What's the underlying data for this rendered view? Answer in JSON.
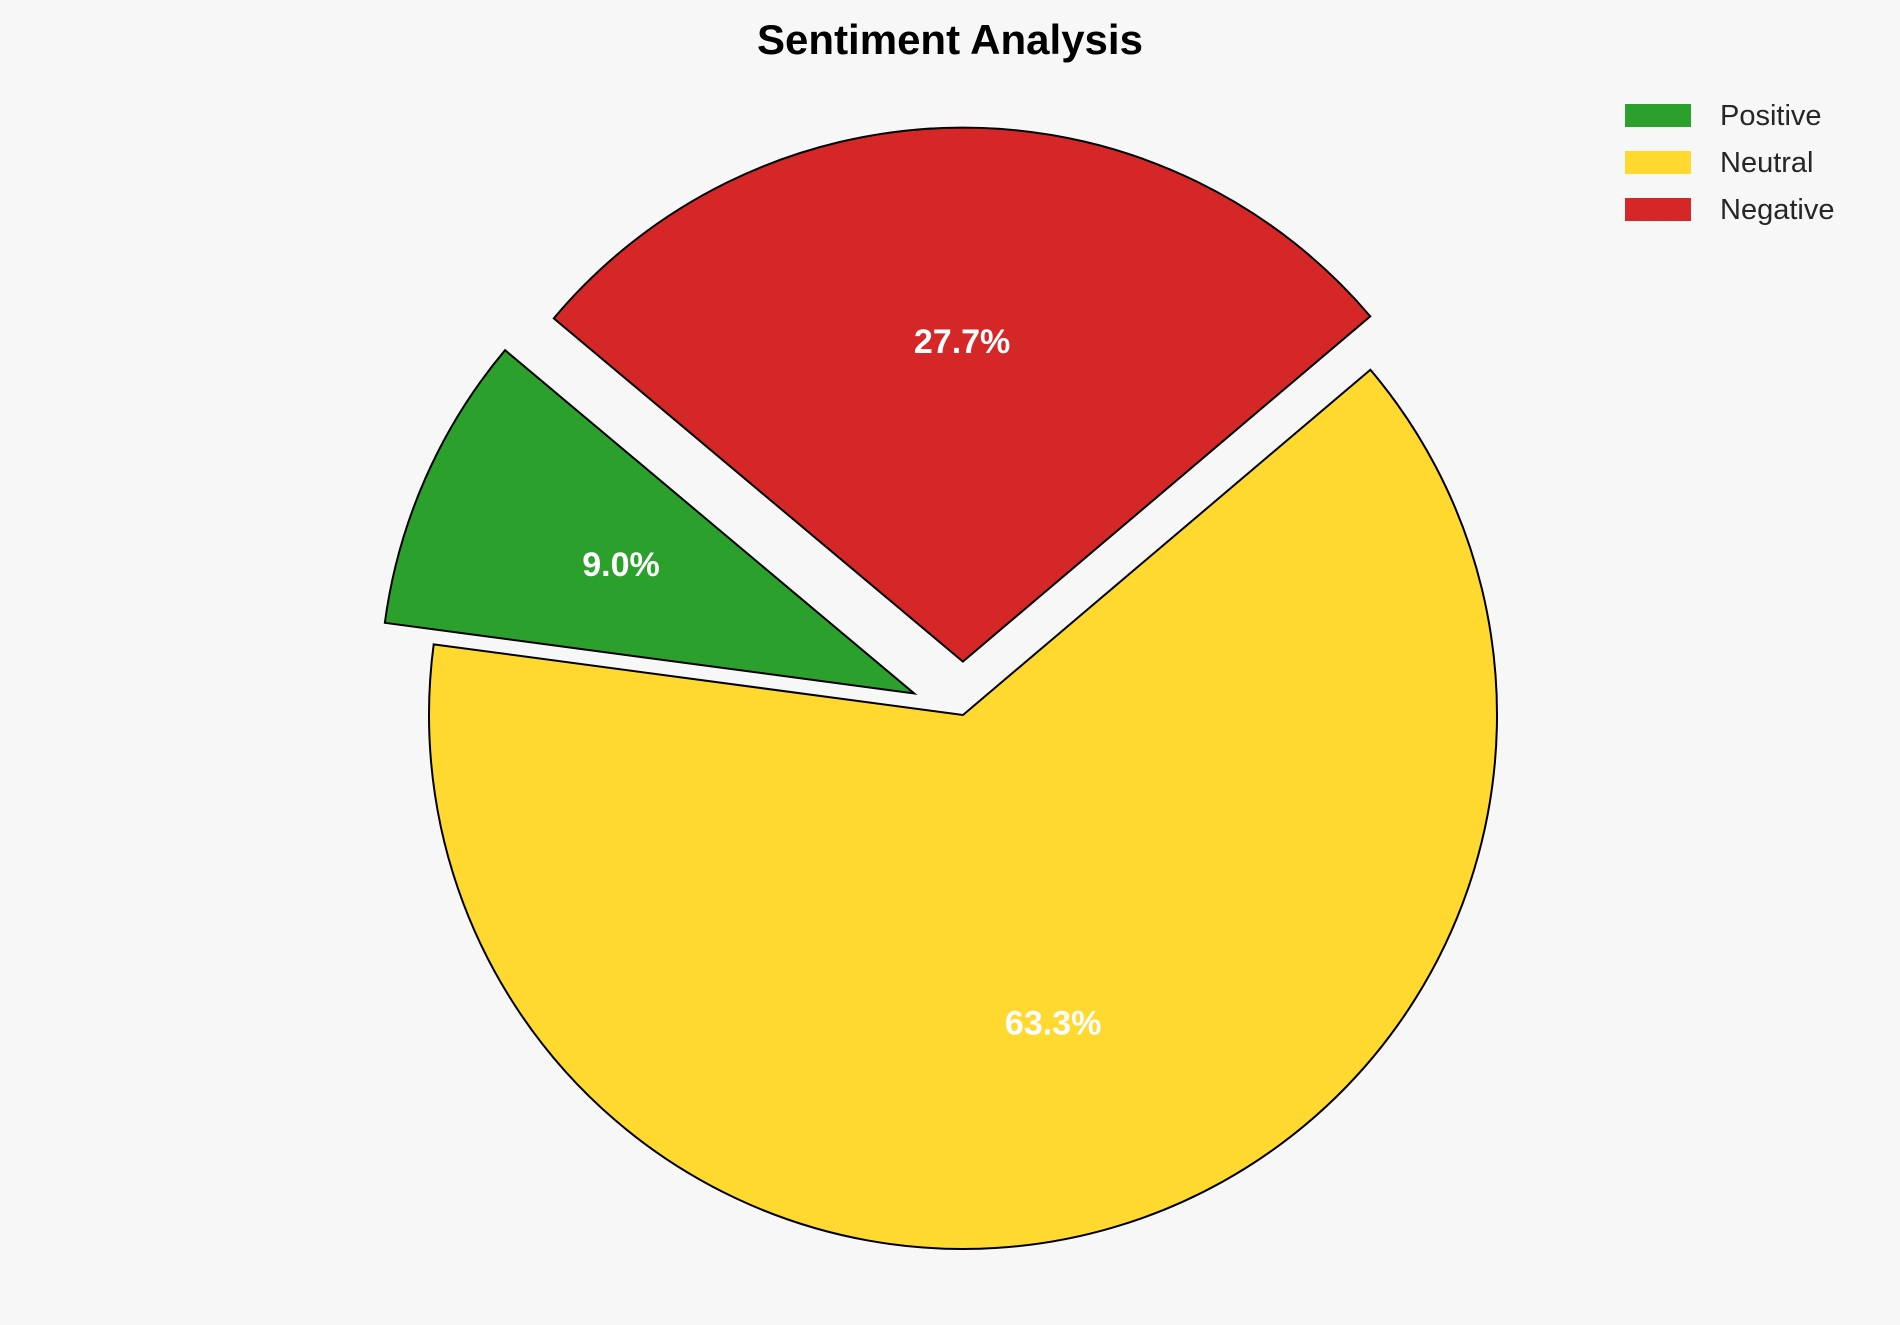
{
  "chart_data": {
    "type": "pie",
    "title": "Sentiment Analysis",
    "categories": [
      "Positive",
      "Neutral",
      "Negative"
    ],
    "values": [
      9.0,
      63.3,
      27.7
    ],
    "labels": [
      "9.0%",
      "63.3%",
      "27.7%"
    ],
    "colors": [
      "#2ca02c",
      "#ffd92f",
      "#d62728"
    ],
    "explode": [
      0.1,
      0,
      0.1
    ],
    "start_angle": 140,
    "direction": "counterclockwise",
    "edge_color": "#000000",
    "legend": {
      "placement": "top-right",
      "entries": [
        "Positive",
        "Neutral",
        "Negative"
      ]
    }
  }
}
